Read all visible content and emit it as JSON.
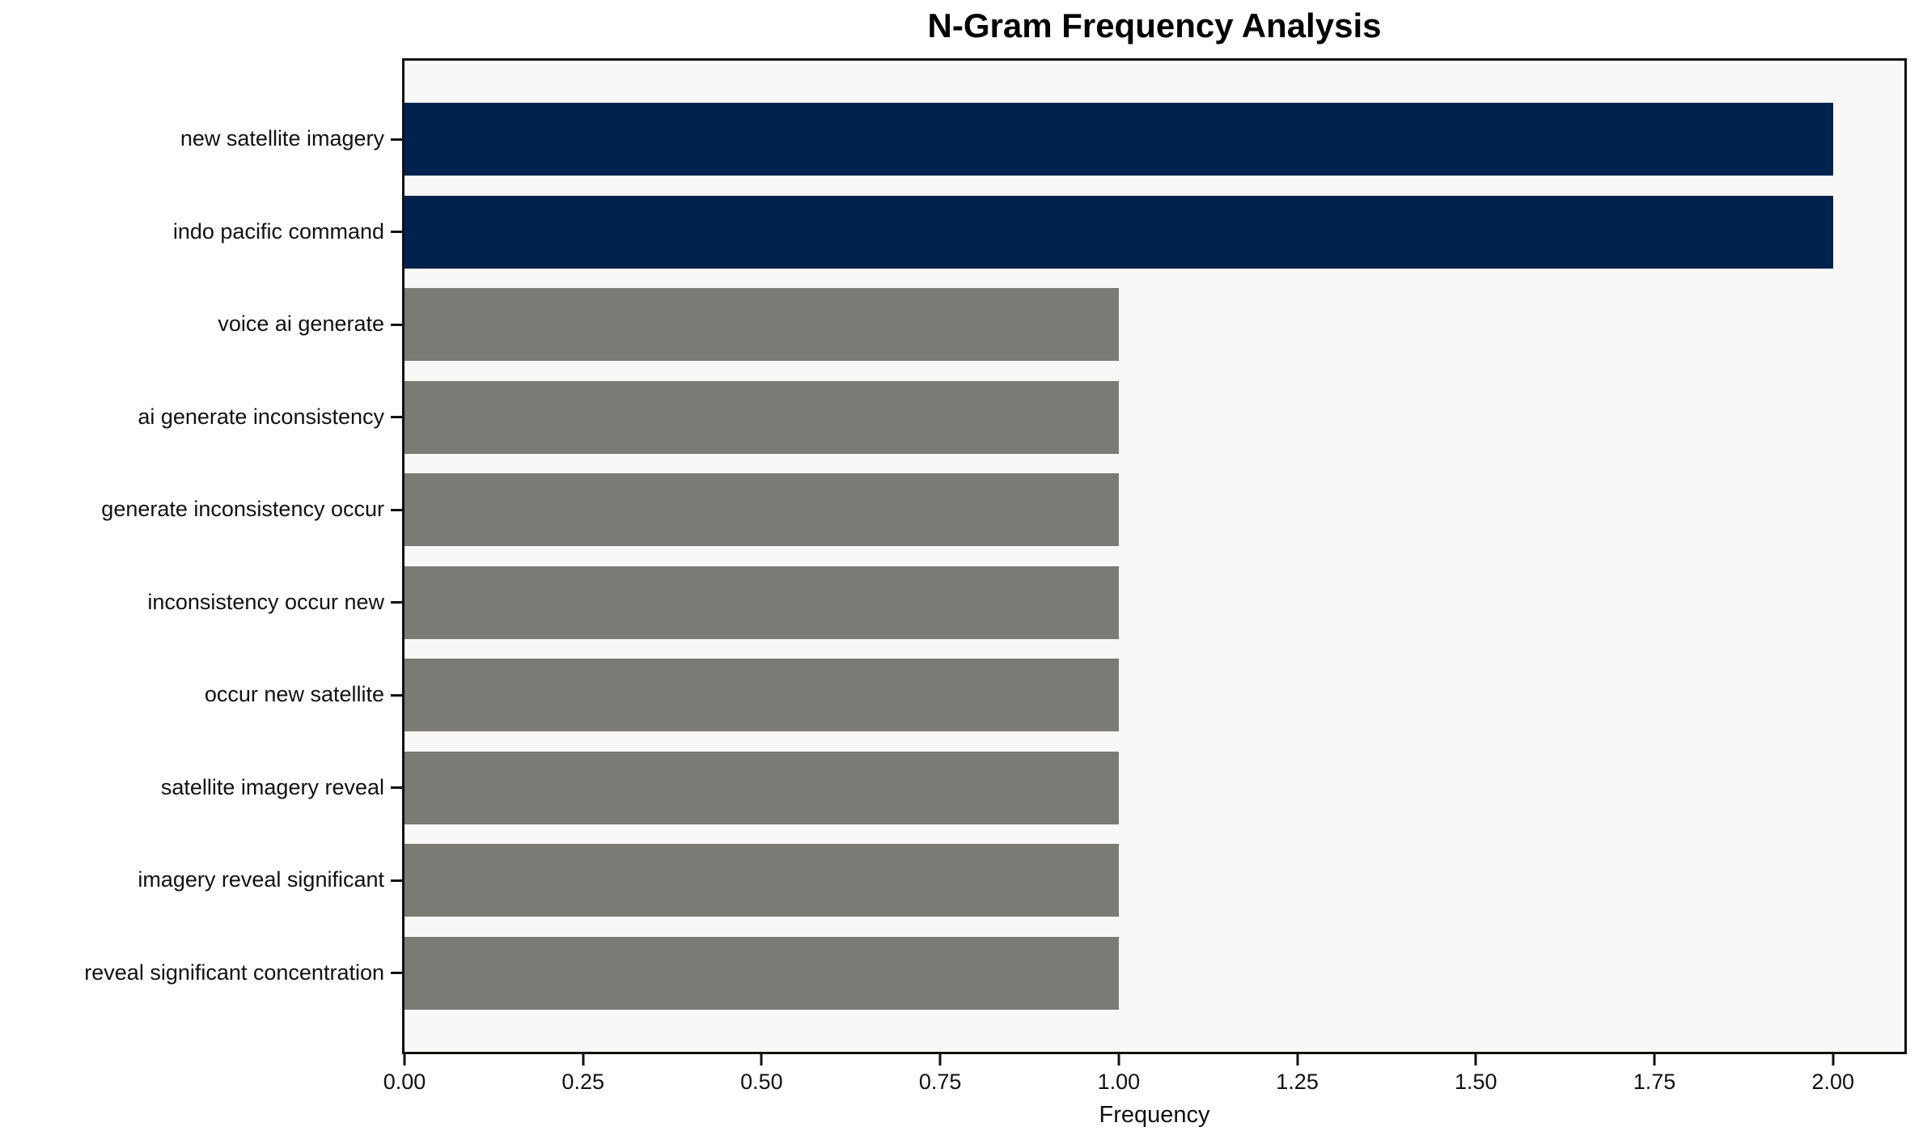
{
  "chart_data": {
    "type": "bar",
    "orientation": "horizontal",
    "title": "N-Gram Frequency Analysis",
    "xlabel": "Frequency",
    "ylabel": "",
    "categories": [
      "new satellite imagery",
      "indo pacific command",
      "voice ai generate",
      "ai generate inconsistency",
      "generate inconsistency occur",
      "inconsistency occur new",
      "occur new satellite",
      "satellite imagery reveal",
      "imagery reveal significant",
      "reveal significant concentration"
    ],
    "values": [
      2,
      2,
      1,
      1,
      1,
      1,
      1,
      1,
      1,
      1
    ],
    "bar_colors": [
      "#02224e",
      "#02224e",
      "#7b7a77",
      "#7b7a77",
      "#7b7a77",
      "#7b7a77",
      "#7b7a77",
      "#7b7a77",
      "#7b7a77",
      "#7b7a77"
    ],
    "xlim": [
      0,
      2.1
    ],
    "xticks": [
      {
        "value": 0,
        "label": "0.00"
      },
      {
        "value": 0.25,
        "label": "0.25"
      },
      {
        "value": 0.5,
        "label": "0.50"
      },
      {
        "value": 0.75,
        "label": "0.75"
      },
      {
        "value": 1,
        "label": "1.00"
      },
      {
        "value": 1.25,
        "label": "1.25"
      },
      {
        "value": 1.5,
        "label": "1.50"
      },
      {
        "value": 1.75,
        "label": "1.75"
      },
      {
        "value": 2,
        "label": "2.00"
      }
    ],
    "grid": false,
    "legend": "none",
    "category_order": "first category at top",
    "colors": {
      "highlight_bar": "#02224e",
      "default_bar": "#7b7a77",
      "plot_background": "#f8f8f7",
      "figure_background": "#ffffff",
      "spine": "#111111"
    }
  }
}
